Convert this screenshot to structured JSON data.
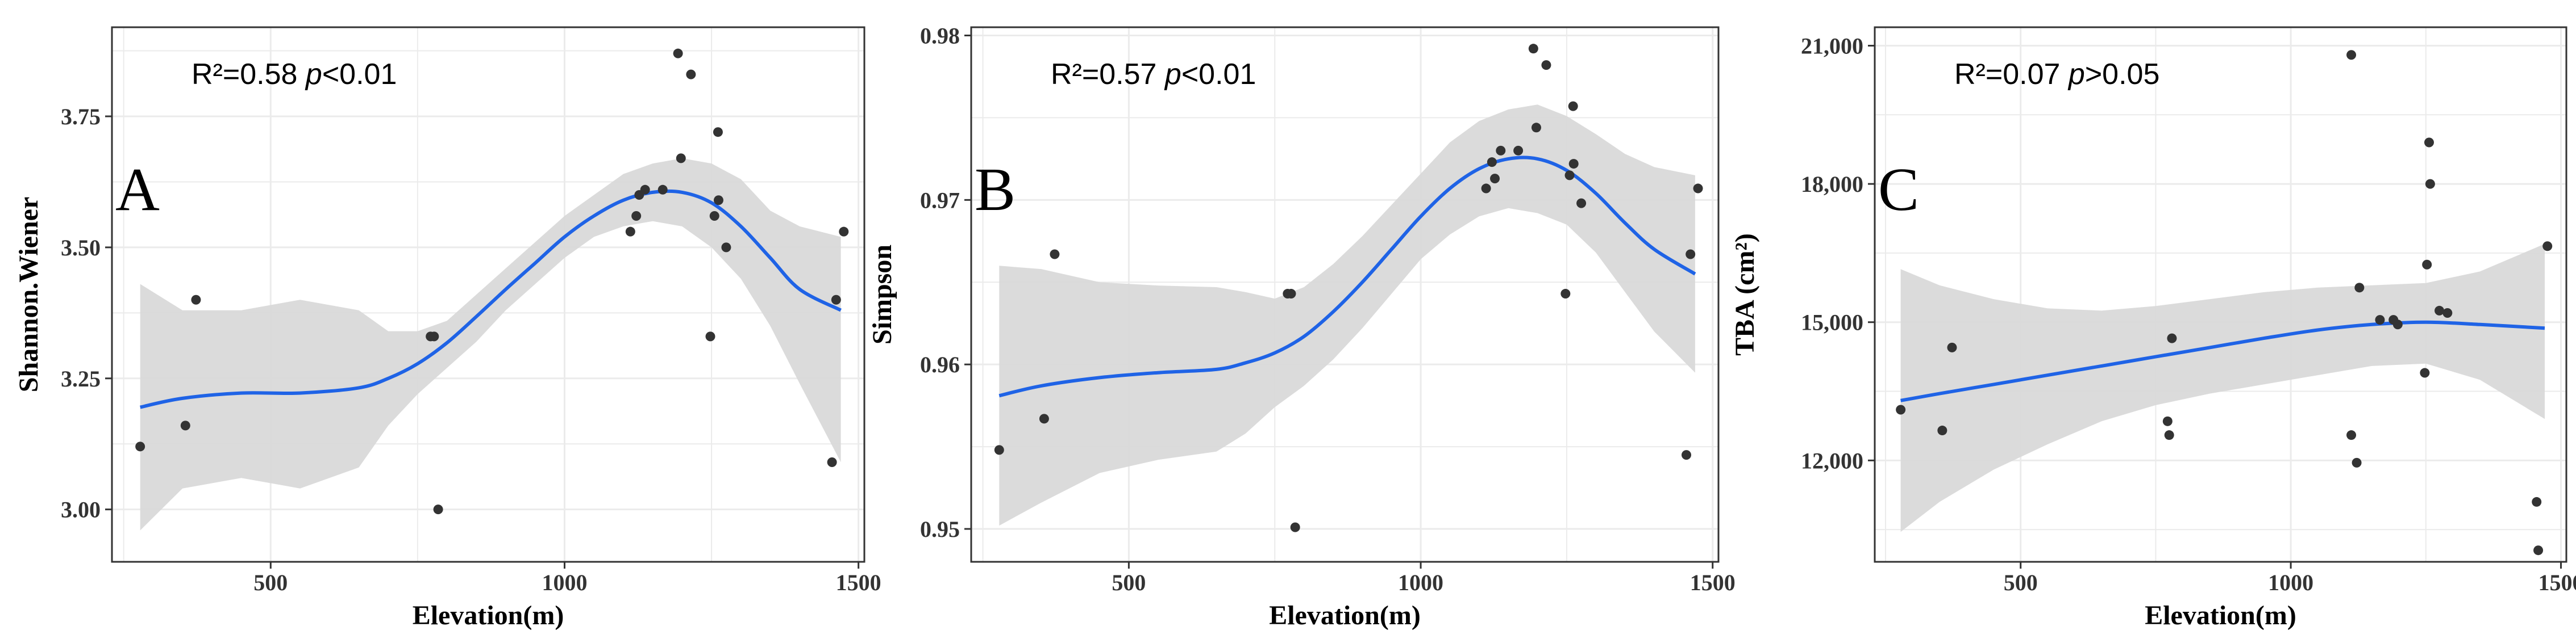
{
  "chart_data": [
    {
      "type": "scatter",
      "panel_label": "A",
      "xlabel": "Elevation(m)",
      "ylabel": "Shannon.Wiener",
      "xlim": [
        230,
        1510
      ],
      "ylim": [
        2.9,
        3.92
      ],
      "x_ticks": [
        500,
        1000,
        1500
      ],
      "x_tick_labels": [
        "500",
        "1000",
        "1500"
      ],
      "y_ticks": [
        3.0,
        3.25,
        3.5,
        3.75
      ],
      "y_tick_labels": [
        "3.00",
        "3.25",
        "3.50",
        "3.75"
      ],
      "annotation": {
        "r2_text": "R²=0.58",
        "p_label": "p",
        "p_rest": "<0.01"
      },
      "points": [
        {
          "x": 278,
          "y": 3.12
        },
        {
          "x": 355,
          "y": 3.16
        },
        {
          "x": 373,
          "y": 3.4
        },
        {
          "x": 772,
          "y": 3.33
        },
        {
          "x": 778,
          "y": 3.33
        },
        {
          "x": 785,
          "y": 3.0
        },
        {
          "x": 1112,
          "y": 3.53
        },
        {
          "x": 1122,
          "y": 3.56
        },
        {
          "x": 1127,
          "y": 3.6
        },
        {
          "x": 1137,
          "y": 3.61
        },
        {
          "x": 1167,
          "y": 3.61
        },
        {
          "x": 1193,
          "y": 3.87
        },
        {
          "x": 1198,
          "y": 3.67
        },
        {
          "x": 1215,
          "y": 3.83
        },
        {
          "x": 1248,
          "y": 3.33
        },
        {
          "x": 1255,
          "y": 3.56
        },
        {
          "x": 1261,
          "y": 3.72
        },
        {
          "x": 1262,
          "y": 3.59
        },
        {
          "x": 1275,
          "y": 3.5
        },
        {
          "x": 1455,
          "y": 3.09
        },
        {
          "x": 1462,
          "y": 3.4
        },
        {
          "x": 1475,
          "y": 3.53
        }
      ],
      "fit": {
        "x": [
          278,
          350,
          450,
          550,
          650,
          700,
          750,
          800,
          850,
          900,
          950,
          1000,
          1050,
          1100,
          1150,
          1200,
          1250,
          1300,
          1350,
          1400,
          1470
        ],
        "y": [
          3.195,
          3.212,
          3.222,
          3.222,
          3.232,
          3.25,
          3.278,
          3.318,
          3.368,
          3.42,
          3.47,
          3.52,
          3.56,
          3.59,
          3.605,
          3.605,
          3.585,
          3.54,
          3.48,
          3.42,
          3.38
        ]
      },
      "band_upper": [
        3.43,
        3.38,
        3.38,
        3.4,
        3.38,
        3.34,
        3.34,
        3.36,
        3.41,
        3.46,
        3.51,
        3.56,
        3.6,
        3.64,
        3.66,
        3.67,
        3.66,
        3.63,
        3.57,
        3.54,
        3.52
      ],
      "band_lower": [
        2.96,
        3.04,
        3.06,
        3.04,
        3.08,
        3.16,
        3.22,
        3.27,
        3.32,
        3.38,
        3.43,
        3.48,
        3.52,
        3.54,
        3.55,
        3.54,
        3.5,
        3.44,
        3.35,
        3.24,
        3.09
      ],
      "colors": {
        "points": "#333333",
        "fit": "#1f63e6",
        "band": "#d9d9d9",
        "grid": "#ebebeb",
        "frame": "#333333"
      }
    },
    {
      "type": "scatter",
      "panel_label": "B",
      "xlabel": "Elevation(m)",
      "ylabel": "Simpson",
      "xlim": [
        230,
        1510
      ],
      "ylim": [
        0.948,
        0.9805
      ],
      "x_ticks": [
        500,
        1000,
        1500
      ],
      "x_tick_labels": [
        "500",
        "1000",
        "1500"
      ],
      "y_ticks": [
        0.95,
        0.96,
        0.97,
        0.98
      ],
      "y_tick_labels": [
        "0.95",
        "0.96",
        "0.97",
        "0.98"
      ],
      "annotation": {
        "r2_text": "R²=0.57",
        "p_label": "p",
        "p_rest": "<0.01"
      },
      "points": [
        {
          "x": 278,
          "y": 0.9548
        },
        {
          "x": 355,
          "y": 0.9567
        },
        {
          "x": 373,
          "y": 0.9667
        },
        {
          "x": 772,
          "y": 0.9643
        },
        {
          "x": 778,
          "y": 0.9643
        },
        {
          "x": 785,
          "y": 0.9501
        },
        {
          "x": 1112,
          "y": 0.9707
        },
        {
          "x": 1122,
          "y": 0.9723
        },
        {
          "x": 1127,
          "y": 0.9713
        },
        {
          "x": 1137,
          "y": 0.973
        },
        {
          "x": 1167,
          "y": 0.973
        },
        {
          "x": 1193,
          "y": 0.9792
        },
        {
          "x": 1198,
          "y": 0.9744
        },
        {
          "x": 1215,
          "y": 0.9782
        },
        {
          "x": 1248,
          "y": 0.9643
        },
        {
          "x": 1255,
          "y": 0.9715
        },
        {
          "x": 1261,
          "y": 0.9757
        },
        {
          "x": 1262,
          "y": 0.9722
        },
        {
          "x": 1275,
          "y": 0.9698
        },
        {
          "x": 1455,
          "y": 0.9545
        },
        {
          "x": 1462,
          "y": 0.9667
        },
        {
          "x": 1475,
          "y": 0.9707
        }
      ],
      "fit": {
        "x": [
          278,
          350,
          450,
          550,
          650,
          700,
          750,
          800,
          850,
          900,
          950,
          1000,
          1050,
          1100,
          1150,
          1200,
          1250,
          1300,
          1350,
          1400,
          1470
        ],
        "y": [
          0.9581,
          0.9587,
          0.9592,
          0.9595,
          0.9597,
          0.9601,
          0.9607,
          0.9617,
          0.9632,
          0.965,
          0.967,
          0.969,
          0.9707,
          0.9719,
          0.9725,
          0.9725,
          0.9718,
          0.9704,
          0.9686,
          0.967,
          0.9655
        ]
      },
      "band_upper": [
        0.966,
        0.9658,
        0.965,
        0.9648,
        0.9647,
        0.9644,
        0.964,
        0.9647,
        0.9661,
        0.9678,
        0.9697,
        0.9716,
        0.9735,
        0.9748,
        0.9755,
        0.9758,
        0.9751,
        0.974,
        0.9728,
        0.972,
        0.9715
      ],
      "band_lower": [
        0.9502,
        0.9516,
        0.9534,
        0.9542,
        0.9547,
        0.9558,
        0.9574,
        0.9587,
        0.9603,
        0.9622,
        0.9643,
        0.9664,
        0.9679,
        0.969,
        0.9695,
        0.9692,
        0.9685,
        0.9668,
        0.9644,
        0.962,
        0.9595
      ],
      "colors": {
        "points": "#333333",
        "fit": "#1f63e6",
        "band": "#d9d9d9",
        "grid": "#ebebeb",
        "frame": "#333333"
      }
    },
    {
      "type": "scatter",
      "panel_label": "C",
      "xlabel": "Elevation(m)",
      "ylabel": "TBA (cm²)",
      "xlim": [
        230,
        1510
      ],
      "ylim": [
        9800,
        21400
      ],
      "x_ticks": [
        500,
        1000,
        1500
      ],
      "x_tick_labels": [
        "500",
        "1000",
        "1500"
      ],
      "y_ticks": [
        12000,
        15000,
        18000,
        21000
      ],
      "y_tick_labels": [
        "12,000",
        "15,000",
        "18,000",
        "21,000"
      ],
      "annotation": {
        "r2_text": "R²=0.07",
        "p_label": "p",
        "p_rest": ">0.05"
      },
      "points": [
        {
          "x": 278,
          "y": 13100
        },
        {
          "x": 355,
          "y": 12650
        },
        {
          "x": 373,
          "y": 14450
        },
        {
          "x": 772,
          "y": 12850
        },
        {
          "x": 775,
          "y": 12550
        },
        {
          "x": 780,
          "y": 14650
        },
        {
          "x": 1112,
          "y": 20800
        },
        {
          "x": 1112,
          "y": 12550
        },
        {
          "x": 1122,
          "y": 11950
        },
        {
          "x": 1127,
          "y": 15750
        },
        {
          "x": 1165,
          "y": 15050
        },
        {
          "x": 1190,
          "y": 15050
        },
        {
          "x": 1198,
          "y": 14950
        },
        {
          "x": 1248,
          "y": 13900
        },
        {
          "x": 1252,
          "y": 16250
        },
        {
          "x": 1256,
          "y": 18900
        },
        {
          "x": 1258,
          "y": 18000
        },
        {
          "x": 1275,
          "y": 15250
        },
        {
          "x": 1290,
          "y": 15200
        },
        {
          "x": 1455,
          "y": 11100
        },
        {
          "x": 1458,
          "y": 10050
        },
        {
          "x": 1475,
          "y": 16650
        }
      ],
      "fit": {
        "x": [
          278,
          350,
          450,
          550,
          650,
          750,
          850,
          950,
          1050,
          1150,
          1250,
          1350,
          1470
        ],
        "y": [
          13300,
          13450,
          13650,
          13850,
          14050,
          14250,
          14450,
          14650,
          14830,
          14950,
          15000,
          14950,
          14870
        ]
      },
      "band_upper": [
        16150,
        15800,
        15500,
        15300,
        15250,
        15350,
        15500,
        15650,
        15750,
        15800,
        15850,
        16100,
        16700
      ],
      "band_lower": [
        10450,
        11100,
        11800,
        12350,
        12850,
        13200,
        13450,
        13650,
        13850,
        14050,
        14100,
        13750,
        12900
      ],
      "colors": {
        "points": "#333333",
        "fit": "#1f63e6",
        "band": "#d9d9d9",
        "grid": "#ebebeb",
        "frame": "#333333"
      }
    }
  ]
}
